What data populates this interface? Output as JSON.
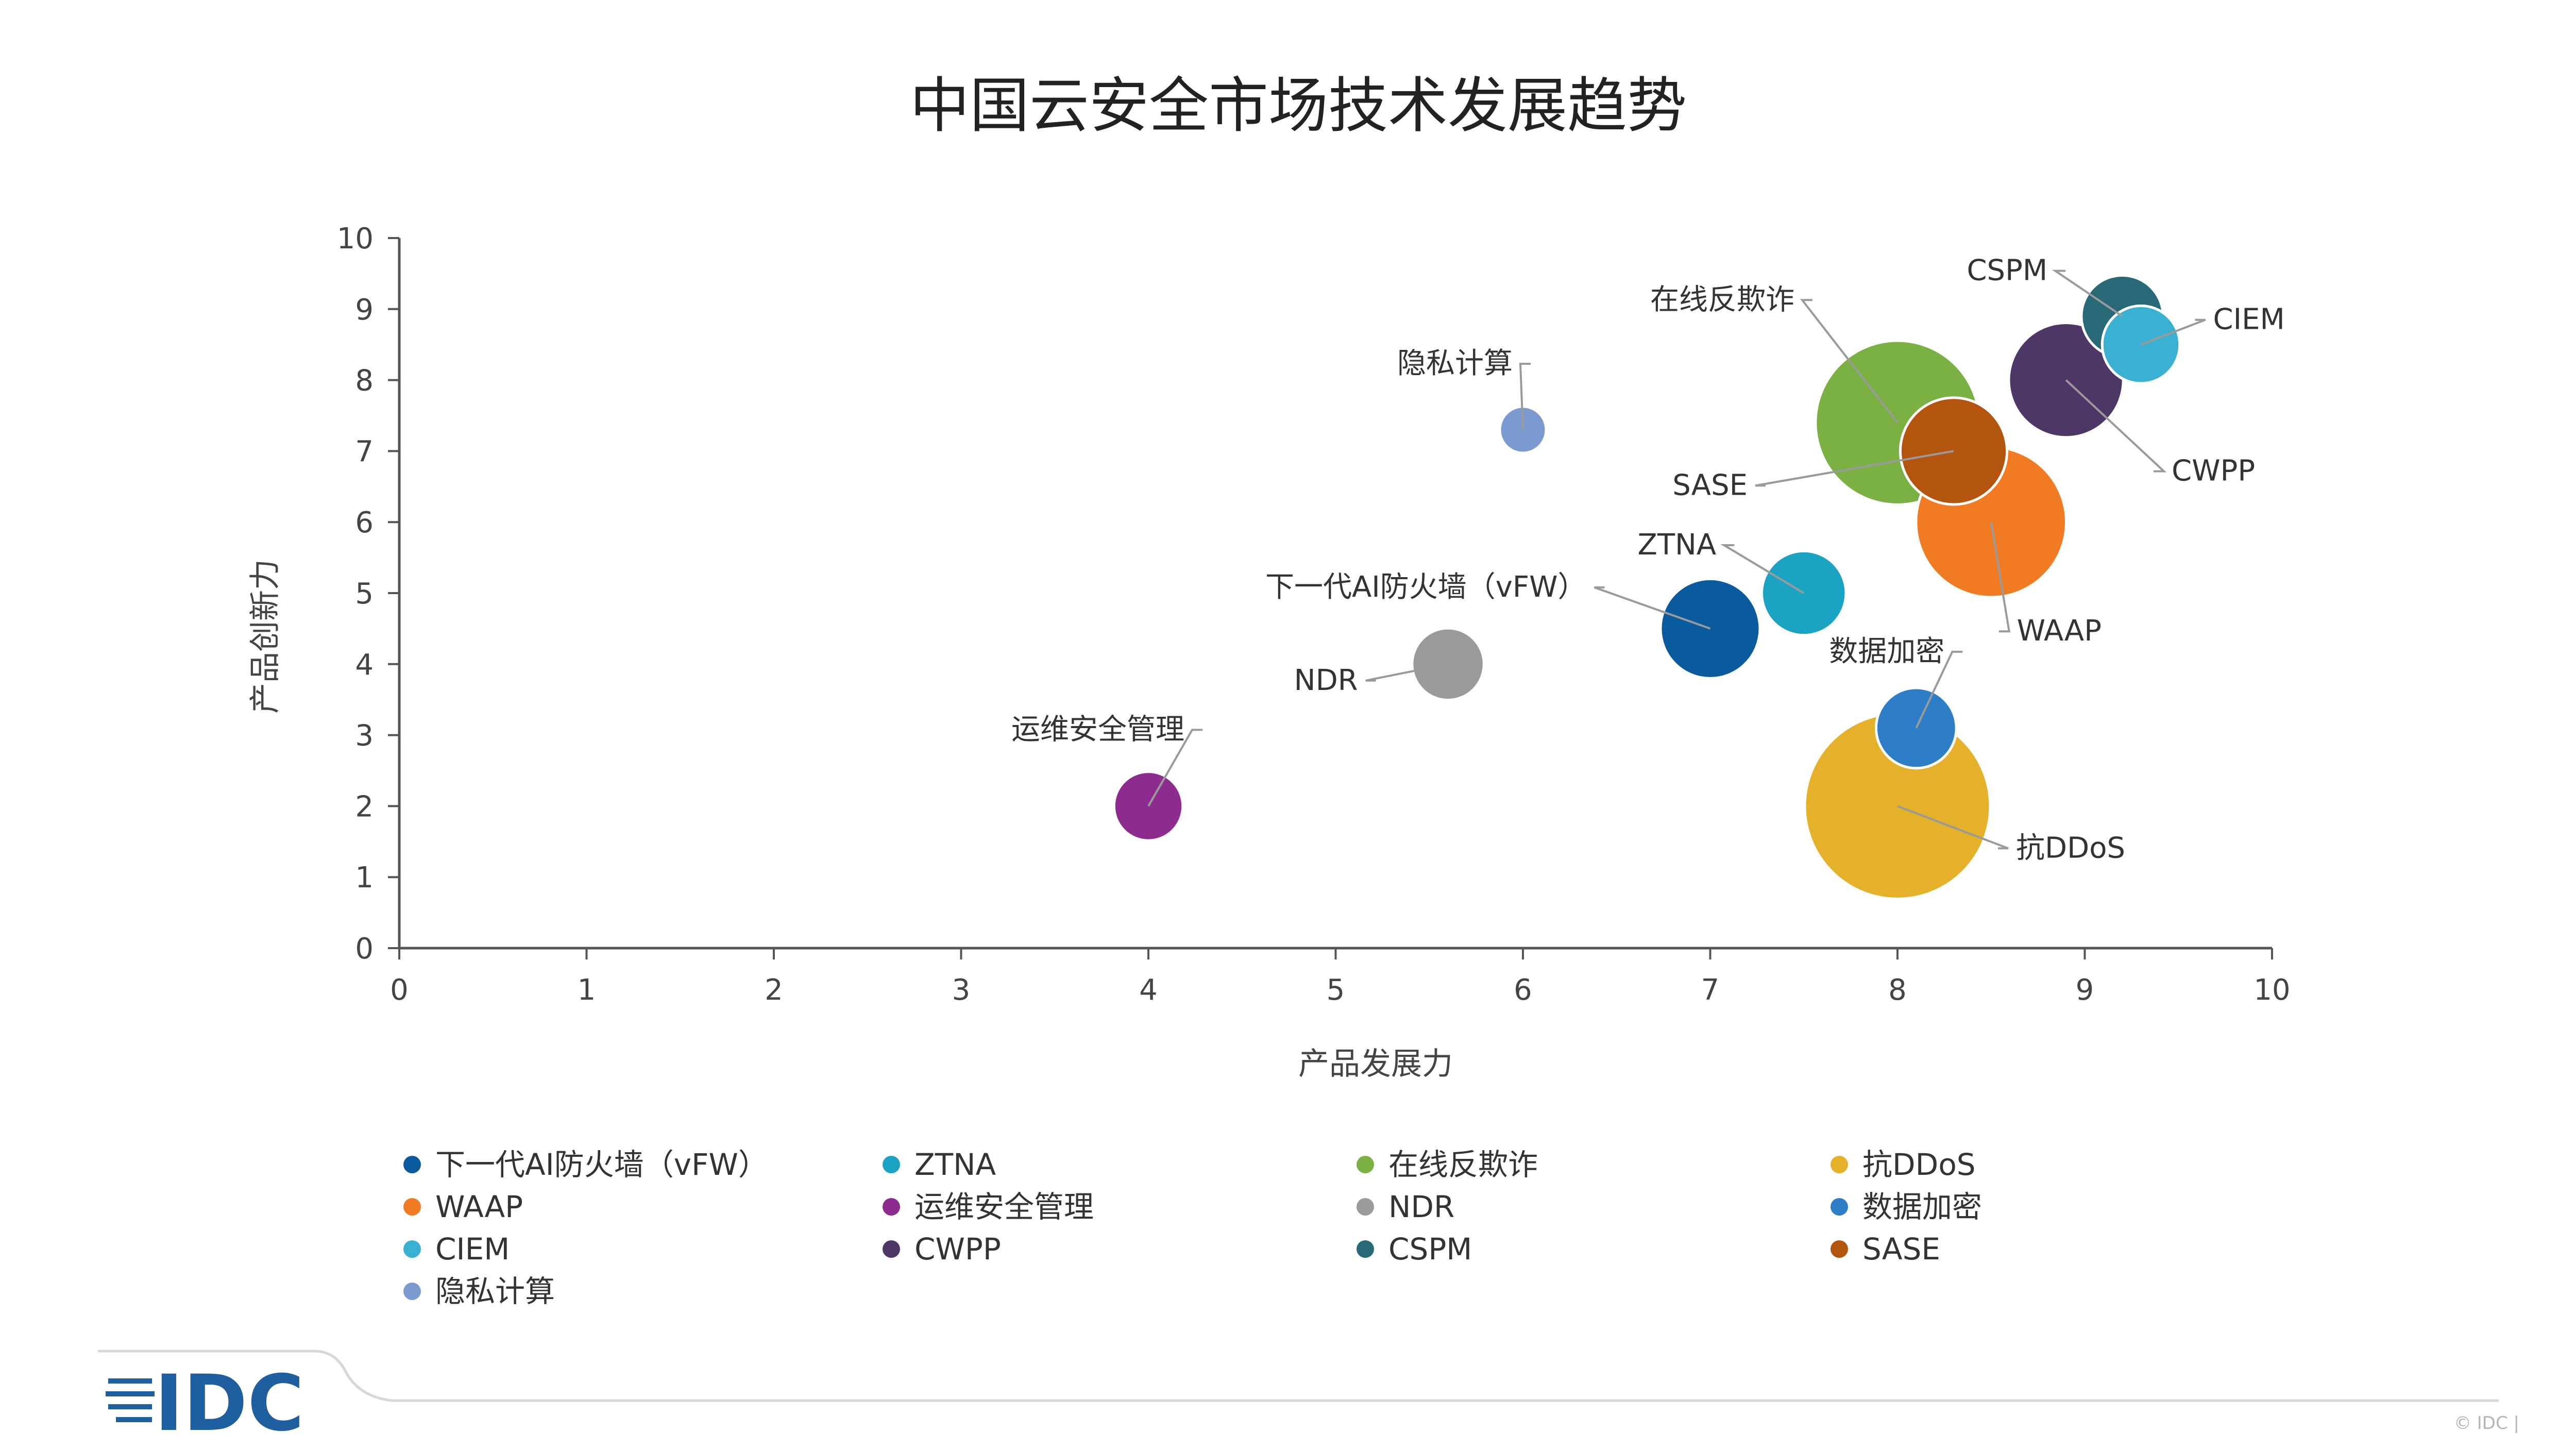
{
  "chart_data": {
    "type": "bubble",
    "title": "中国云安全市场技术发展趋势",
    "xlabel": "产品发展力",
    "ylabel": "产品创新力",
    "xlim": [
      0,
      10
    ],
    "ylim": [
      0,
      10
    ],
    "xticks": [
      "0",
      "1",
      "2",
      "3",
      "4",
      "5",
      "6",
      "7",
      "8",
      "9",
      "10"
    ],
    "yticks": [
      "0",
      "1",
      "2",
      "3",
      "4",
      "5",
      "6",
      "7",
      "8",
      "9",
      "10"
    ],
    "grid": false,
    "legend_position": "bottom",
    "series": [
      {
        "name": "下一代AI防火墙（vFW）",
        "x": 7.0,
        "y": 4.5,
        "size": 4.6,
        "color": "#0a5a9e"
      },
      {
        "name": "ZTNA",
        "x": 7.5,
        "y": 5.0,
        "size": 3.3,
        "color": "#1aa3c2"
      },
      {
        "name": "在线反欺诈",
        "x": 8.0,
        "y": 7.4,
        "size": 12.5,
        "color": "#7bb142"
      },
      {
        "name": "抗DDoS",
        "x": 8.0,
        "y": 2.0,
        "size": 16.0,
        "color": "#e5b12a"
      },
      {
        "name": "WAAP",
        "x": 8.5,
        "y": 6.0,
        "size": 10.5,
        "color": "#f07b22"
      },
      {
        "name": "运维安全管理",
        "x": 4.0,
        "y": 2.0,
        "size": 2.2,
        "color": "#8e2b8f"
      },
      {
        "name": "NDR",
        "x": 5.6,
        "y": 4.0,
        "size": 2.4,
        "color": "#9a9a9a"
      },
      {
        "name": "数据加密",
        "x": 8.1,
        "y": 3.1,
        "size": 3.0,
        "color": "#2e7ec7"
      },
      {
        "name": "CIEM",
        "x": 9.3,
        "y": 8.5,
        "size": 2.8,
        "color": "#3ab1d2"
      },
      {
        "name": "CWPP",
        "x": 8.9,
        "y": 8.0,
        "size": 6.1,
        "color": "#4e3766"
      },
      {
        "name": "CSPM",
        "x": 9.2,
        "y": 8.9,
        "size": 3.1,
        "color": "#276977"
      },
      {
        "name": "SASE",
        "x": 8.3,
        "y": 7.0,
        "size": 5.3,
        "color": "#b3540f"
      },
      {
        "name": "隐私计算",
        "x": 6.0,
        "y": 7.3,
        "size": 1.0,
        "color": "#7b9bd0"
      }
    ]
  },
  "logo": {
    "text": "IDC",
    "color": "#1f5f9f"
  },
  "footer": {
    "copyright": "© IDC |"
  }
}
